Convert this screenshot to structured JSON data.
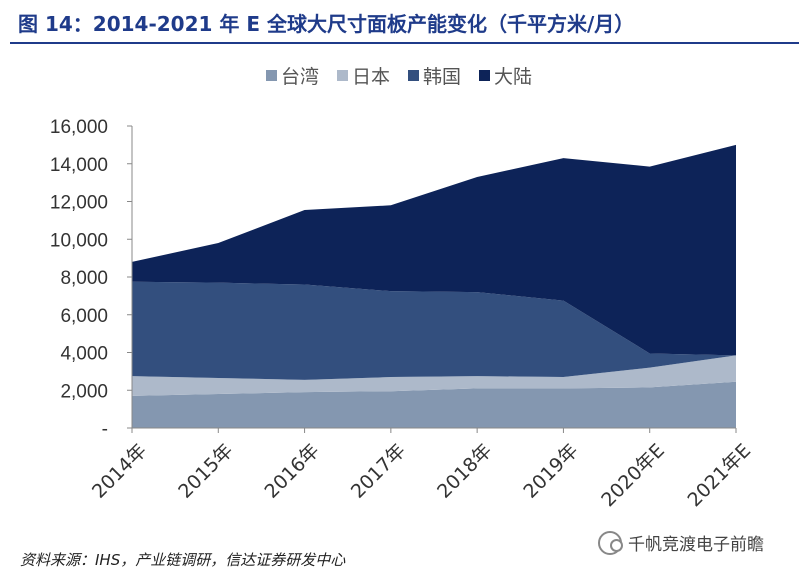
{
  "title": "图 14：2014-2021 年 E 全球大尺寸面板产能变化（千平方米/月）",
  "source": "资料来源：IHS，产业链调研，信达证券研发中心",
  "watermark": "千帆竞渡电子前瞻",
  "chart_data": {
    "type": "area",
    "stacked": true,
    "categories": [
      "2014年",
      "2015年",
      "2016年",
      "2017年",
      "2018年",
      "2019年",
      "2020年E",
      "2021年E"
    ],
    "ylim": [
      0,
      16000
    ],
    "yticks": [
      "-",
      "2,000",
      "4,000",
      "6,000",
      "8,000",
      "10,000",
      "12,000",
      "14,000",
      "16,000"
    ],
    "ytick_values": [
      0,
      2000,
      4000,
      6000,
      8000,
      10000,
      12000,
      14000,
      16000
    ],
    "legend_position": "top",
    "series": [
      {
        "name": "台湾",
        "color": "#8497b0",
        "values": [
          1700,
          1800,
          1900,
          1950,
          2100,
          2100,
          2150,
          2450
        ]
      },
      {
        "name": "日本",
        "color": "#adb9ca",
        "values": [
          1050,
          850,
          650,
          750,
          650,
          600,
          1050,
          1400
        ]
      },
      {
        "name": "韩国",
        "color": "#334f7e",
        "values": [
          5000,
          5050,
          5050,
          4550,
          4450,
          4050,
          750,
          0
        ]
      },
      {
        "name": "大陆",
        "color": "#0d2358",
        "values": [
          1050,
          2100,
          3950,
          4550,
          6100,
          7550,
          9900,
          11150
        ]
      }
    ]
  }
}
